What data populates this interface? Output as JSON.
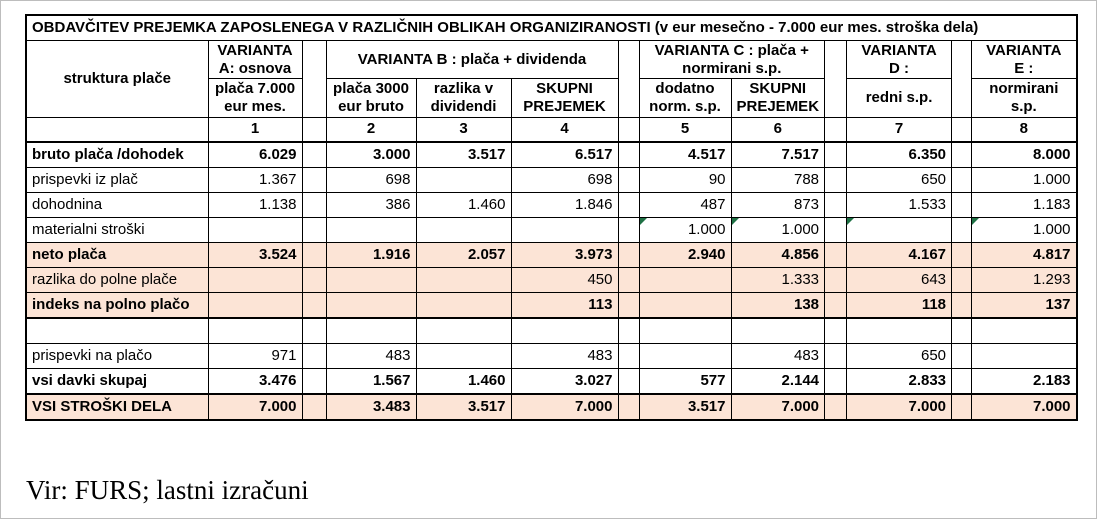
{
  "table": {
    "title": "OBDAVČITEV PREJEMKA ZAPOSLENEGA V RAZLIČNIH OBLIKAH ORGANIZIRANOSTI (v eur mesečno - 7.000 eur mes. stroška dela)",
    "header": {
      "row_label_header": "struktura plače",
      "groups": [
        {
          "label": "VARIANTA\nA: osnova"
        },
        {
          "label": "VARIANTA B : plača + dividenda"
        },
        {
          "label": "VARIANTA C : plača +\nnormirani s.p."
        },
        {
          "label": "VARIANTA\nD :"
        },
        {
          "label": "VARIANTA\nE :"
        }
      ],
      "sub_headers": [
        "plača 7.000\neur mes.",
        "plača 3000\neur bruto",
        "razlika v\ndividendi",
        "SKUPNI\nPREJEMEK",
        "dodatno\nnorm. s.p.",
        "SKUPNI\nPREJEMEK",
        "redni s.p.",
        "normirani\ns.p."
      ],
      "col_numbers": [
        "1",
        "2",
        "3",
        "4",
        "5",
        "6",
        "7",
        "8"
      ]
    },
    "rows": [
      {
        "label": "bruto plača /dohodek",
        "bold": true,
        "highlight": false,
        "values": [
          "6.029",
          "3.000",
          "3.517",
          "6.517",
          "4.517",
          "7.517",
          "6.350",
          "8.000"
        ],
        "flags": []
      },
      {
        "label": "prispevki  iz plač",
        "bold": false,
        "highlight": false,
        "values": [
          "1.367",
          "698",
          "",
          "698",
          "90",
          "788",
          "650",
          "1.000"
        ],
        "flags": []
      },
      {
        "label": "dohodnina",
        "bold": false,
        "highlight": false,
        "values": [
          "1.138",
          "386",
          "1.460",
          "1.846",
          "487",
          "873",
          "1.533",
          "1.183"
        ],
        "flags": []
      },
      {
        "label": "materialni stroški",
        "bold": false,
        "highlight": false,
        "values": [
          "",
          "",
          "",
          "",
          "1.000",
          "1.000",
          "",
          "1.000"
        ],
        "flags": [
          5,
          6,
          7,
          8
        ]
      },
      {
        "label": "neto plača",
        "bold": true,
        "highlight": true,
        "values": [
          "3.524",
          "1.916",
          "2.057",
          "3.973",
          "2.940",
          "4.856",
          "4.167",
          "4.817"
        ],
        "flags": []
      },
      {
        "label": "razlika do polne plače",
        "bold": false,
        "highlight": true,
        "values": [
          "",
          "",
          "",
          "450",
          "",
          "1.333",
          "643",
          "1.293"
        ],
        "flags": []
      },
      {
        "label": "indeks na polno plačo",
        "bold": true,
        "highlight": true,
        "values": [
          "",
          "",
          "",
          "113",
          "",
          "138",
          "118",
          "137"
        ],
        "flags": []
      },
      {
        "label": "",
        "bold": false,
        "highlight": false,
        "values": [
          "",
          "",
          "",
          "",
          "",
          "",
          "",
          ""
        ],
        "flags": []
      },
      {
        "label": "prispevki na plačo",
        "bold": false,
        "highlight": false,
        "values": [
          "971",
          "483",
          "",
          "483",
          "",
          "483",
          "650",
          ""
        ],
        "flags": []
      },
      {
        "label": "vsi davki skupaj",
        "bold": true,
        "highlight": false,
        "values": [
          "3.476",
          "1.567",
          "1.460",
          "3.027",
          "577",
          "2.144",
          "2.833",
          "2.183"
        ],
        "flags": []
      },
      {
        "label": "VSI STROŠKI DELA",
        "bold": true,
        "highlight": true,
        "values": [
          "7.000",
          "3.483",
          "3.517",
          "7.000",
          "3.517",
          "7.000",
          "7.000",
          "7.000"
        ],
        "flags": []
      }
    ]
  },
  "footer": "Vir: FURS; lastni izračuni",
  "colors": {
    "highlight": "#FCE4D6",
    "flag_green": "#1F7145",
    "border": "#000000"
  }
}
